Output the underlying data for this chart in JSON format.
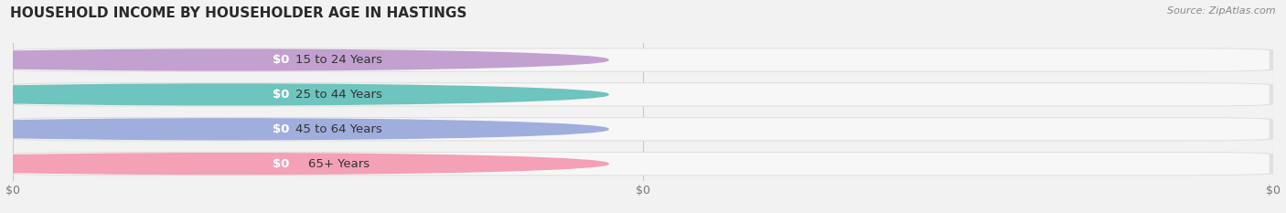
{
  "title": "HOUSEHOLD INCOME BY HOUSEHOLDER AGE IN HASTINGS",
  "source": "Source: ZipAtlas.com",
  "categories": [
    "15 to 24 Years",
    "25 to 44 Years",
    "45 to 64 Years",
    "65+ Years"
  ],
  "values": [
    0,
    0,
    0,
    0
  ],
  "bar_colors": [
    "#c2a0d0",
    "#6ec4be",
    "#a0aedd",
    "#f4a0b5"
  ],
  "background_color": "#f2f2f2",
  "bar_outer_color": "#e0e0e0",
  "bar_inner_color": "#f7f7f7",
  "title_fontsize": 11,
  "source_fontsize": 8,
  "tick_fontsize": 9,
  "label_fontsize": 9.5
}
